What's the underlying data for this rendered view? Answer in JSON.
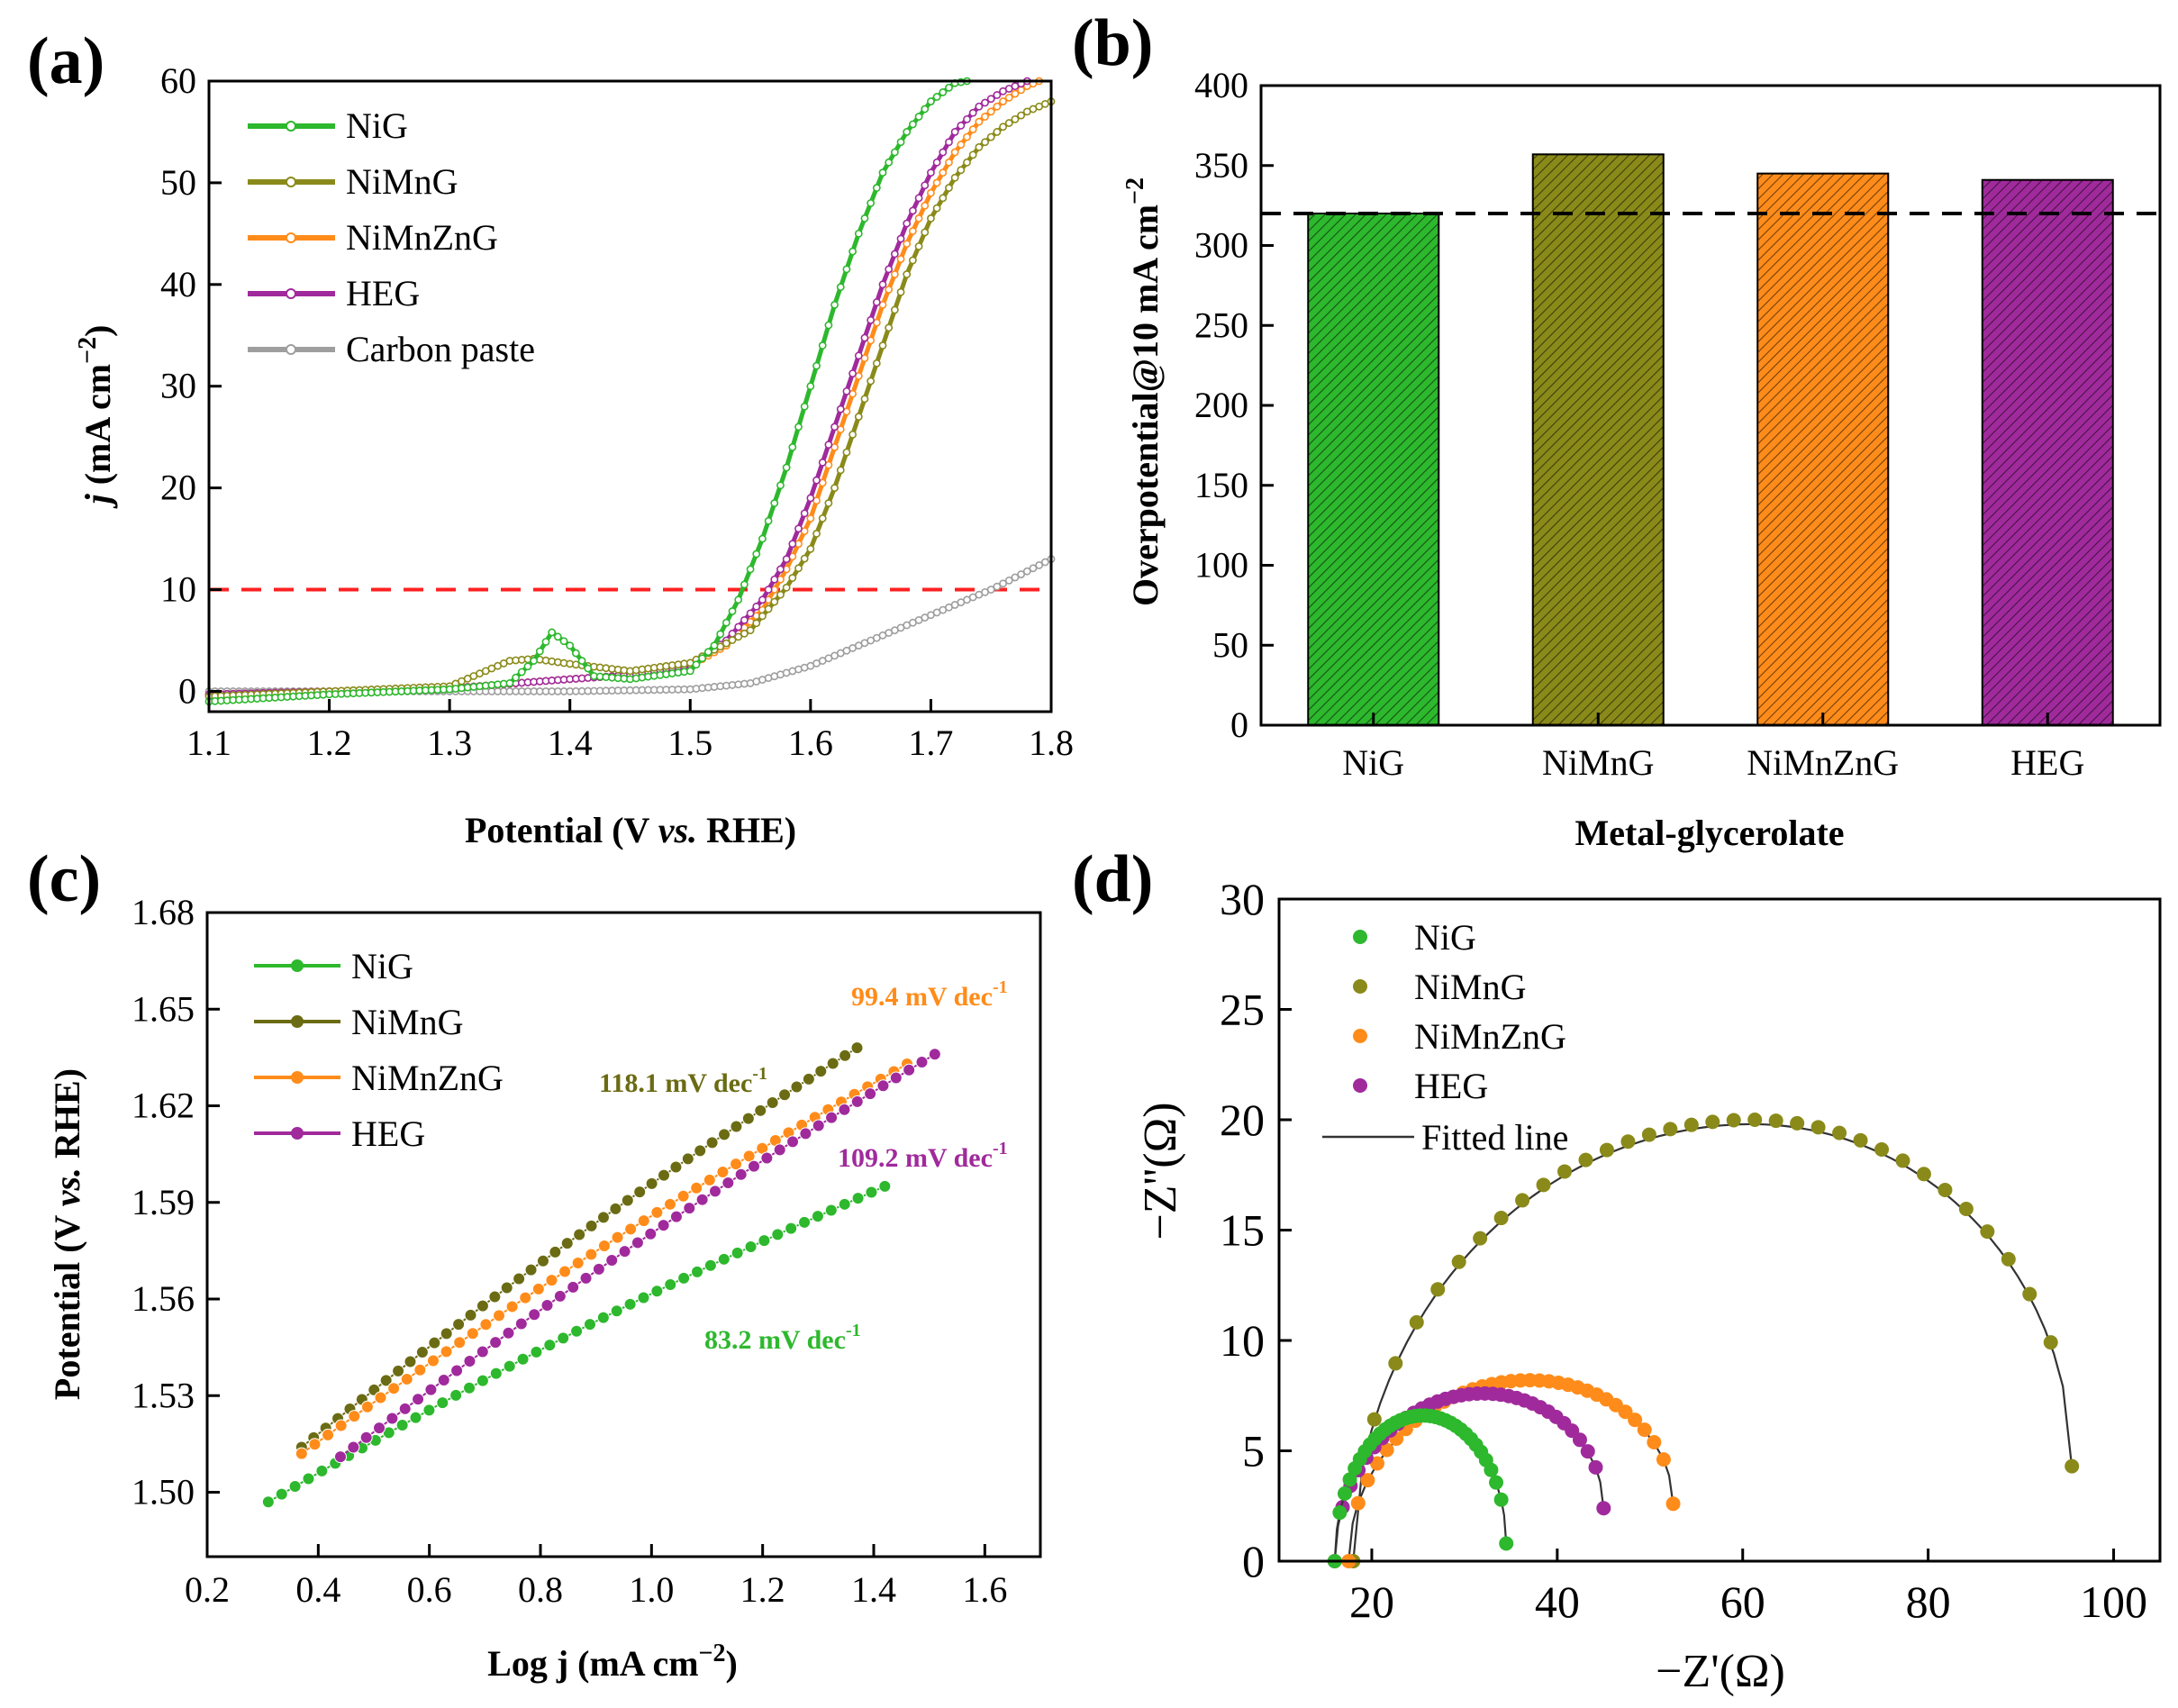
{
  "chart_data": [
    {
      "panel": "(a)",
      "type": "line",
      "xlabel_parts": [
        "Potential (V ",
        "vs.",
        " RHE)"
      ],
      "ylabel_parts": [
        "j",
        " (mA cm",
        "−2",
        ")"
      ],
      "xlim": [
        1.1,
        1.8
      ],
      "ylim": [
        -2,
        60
      ],
      "xticks": [
        1.1,
        1.2,
        1.3,
        1.4,
        1.5,
        1.6,
        1.7,
        1.8
      ],
      "yticks": [
        0,
        10,
        20,
        30,
        40,
        50,
        60
      ],
      "reference_line": {
        "y": 10,
        "color": "#ff2020",
        "style": "dashed"
      },
      "legend_position": "top-left",
      "series": [
        {
          "name": "NiG",
          "color": "#2db82d",
          "x": [
            1.1,
            1.2,
            1.3,
            1.35,
            1.37,
            1.385,
            1.4,
            1.42,
            1.45,
            1.5,
            1.52,
            1.54,
            1.56,
            1.58,
            1.6,
            1.62,
            1.64,
            1.66,
            1.68,
            1.7,
            1.72,
            1.73
          ],
          "y": [
            -1,
            -0.3,
            0.2,
            0.8,
            3.0,
            5.8,
            4.5,
            1.5,
            1.2,
            2.0,
            4.5,
            9,
            15,
            22,
            30,
            38,
            45,
            51,
            55,
            58,
            59.8,
            60
          ]
        },
        {
          "name": "NiMnG",
          "color": "#8a8a1a",
          "x": [
            1.1,
            1.2,
            1.3,
            1.35,
            1.37,
            1.4,
            1.45,
            1.5,
            1.55,
            1.58,
            1.6,
            1.62,
            1.64,
            1.66,
            1.68,
            1.7,
            1.72,
            1.74,
            1.76,
            1.78,
            1.8
          ],
          "y": [
            -0.5,
            0,
            0.5,
            3.0,
            3.2,
            2.7,
            2.0,
            2.8,
            6,
            10.2,
            14,
            20,
            27,
            34,
            41,
            46.5,
            50.5,
            53.5,
            55.5,
            57,
            58
          ]
        },
        {
          "name": "NiMnZnG",
          "color": "#ff8c1a",
          "x": [
            1.1,
            1.2,
            1.3,
            1.4,
            1.45,
            1.5,
            1.53,
            1.56,
            1.58,
            1.6,
            1.62,
            1.64,
            1.66,
            1.68,
            1.7,
            1.72,
            1.74,
            1.76,
            1.78,
            1.79
          ],
          "y": [
            -0.3,
            0,
            0.3,
            1.2,
            1.6,
            2.5,
            4.5,
            8,
            12,
            17,
            24,
            31,
            38,
            44,
            49,
            53,
            56,
            58,
            59.5,
            60
          ]
        },
        {
          "name": "HEG",
          "color": "#a02a9c",
          "x": [
            1.1,
            1.2,
            1.3,
            1.4,
            1.45,
            1.5,
            1.53,
            1.56,
            1.58,
            1.6,
            1.62,
            1.64,
            1.66,
            1.68,
            1.7,
            1.72,
            1.74,
            1.76,
            1.78
          ],
          "y": [
            -0.3,
            0,
            0.3,
            1.2,
            1.6,
            2.6,
            5,
            9,
            13,
            19,
            26,
            33,
            40,
            46,
            51,
            55,
            57.5,
            59,
            60
          ]
        },
        {
          "name": "Carbon paste",
          "color": "#9e9e9e",
          "x": [
            1.1,
            1.2,
            1.3,
            1.4,
            1.5,
            1.55,
            1.6,
            1.65,
            1.7,
            1.75,
            1.8
          ],
          "y": [
            0,
            0,
            0,
            0,
            0.2,
            0.8,
            2.5,
            5,
            7.5,
            10,
            13
          ]
        }
      ]
    },
    {
      "panel": "(b)",
      "type": "bar",
      "categories": [
        "NiG",
        "NiMnG",
        "NiMnZnG",
        "HEG"
      ],
      "values": [
        320,
        357,
        345,
        341
      ],
      "colors": [
        "#2db82d",
        "#8a8a1a",
        "#ff8c1a",
        "#a02a9c"
      ],
      "xlabel": "Metal-glycerolate",
      "ylabel_parts": [
        "Overpotential@10 mA cm",
        "−2"
      ],
      "ylim": [
        0,
        400
      ],
      "yticks": [
        0,
        50,
        100,
        150,
        200,
        250,
        300,
        350,
        400
      ],
      "reference_line": {
        "y": 320,
        "color": "#000000",
        "style": "dashed"
      }
    },
    {
      "panel": "(c)",
      "type": "line",
      "xlabel_parts": [
        "Log j (mA cm",
        "−2",
        ")"
      ],
      "ylabel_parts": [
        "Potential (V ",
        "vs.",
        " RHE)"
      ],
      "xlim": [
        0.2,
        1.7
      ],
      "ylim": [
        1.48,
        1.68
      ],
      "xticks": [
        0.2,
        0.4,
        0.6,
        0.8,
        1.0,
        1.2,
        1.4,
        1.6
      ],
      "yticks": [
        1.5,
        1.53,
        1.56,
        1.59,
        1.62,
        1.65,
        1.68
      ],
      "ytick_labels": [
        "1.50",
        "1.53",
        "1.56",
        "1.59",
        "1.62",
        "1.65",
        "1.68"
      ],
      "legend_position": "top-left",
      "series": [
        {
          "name": "NiG",
          "color": "#2db82d",
          "x": [
            0.31,
            1.42
          ],
          "y": [
            1.497,
            1.595
          ],
          "tafel": "83.2 mV dec"
        },
        {
          "name": "NiMnG",
          "color": "#6b6b14",
          "x": [
            0.37,
            1.37
          ],
          "y": [
            1.514,
            1.638
          ],
          "tafel": "118.1 mV dec"
        },
        {
          "name": "NiMnZnG",
          "color": "#ff8c1a",
          "x": [
            0.37,
            1.46
          ],
          "y": [
            1.512,
            1.633
          ],
          "tafel": "99.4 mV dec"
        },
        {
          "name": "HEG",
          "color": "#a02a9c",
          "x": [
            0.44,
            1.51
          ],
          "y": [
            1.511,
            1.636
          ],
          "tafel": "109.2 mV dec"
        }
      ],
      "tafel_superscript": "-1"
    },
    {
      "panel": "(d)",
      "type": "scatter",
      "xlabel": "−Z'(Ω)",
      "ylabel": "−Z''(Ω)",
      "xlim": [
        10,
        105
      ],
      "ylim": [
        0,
        30
      ],
      "xticks": [
        20,
        40,
        60,
        80,
        100
      ],
      "yticks": [
        0,
        5,
        10,
        15,
        20,
        25,
        30
      ],
      "legend_position": "top-left",
      "fitted_line_label": "Fitted line",
      "series": [
        {
          "name": "NiG",
          "color": "#2db82d",
          "x_start": 16,
          "x_end": 34.5,
          "peak_x": 25.5,
          "peak_y": 6.6,
          "end_y": 0.8
        },
        {
          "name": "NiMnG",
          "color": "#8a8a1a",
          "x_start": 18,
          "x_end": 95.5,
          "peak_x": 61,
          "peak_y": 20,
          "end_y": 4.3
        },
        {
          "name": "NiMnZnG",
          "color": "#ff8c1a",
          "x_start": 17.5,
          "x_end": 52.5,
          "peak_x": 37,
          "peak_y": 8.2,
          "end_y": 2.6
        },
        {
          "name": "HEG",
          "color": "#a02a9c",
          "x_start": 16,
          "x_end": 45,
          "peak_x": 32,
          "peak_y": 7.6,
          "end_y": 2.4
        }
      ]
    }
  ]
}
